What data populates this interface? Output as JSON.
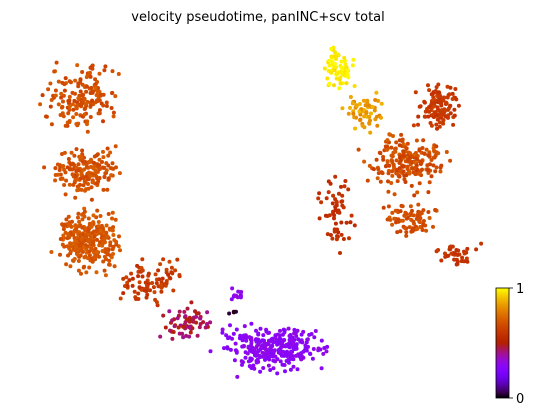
{
  "chart_data": {
    "type": "scatter",
    "title": "velocity pseudotime, panINC+scv total",
    "xlabel": "",
    "ylabel": "",
    "axes_visible": false,
    "grid": false,
    "colormap": "gnuplot",
    "color_value_range": [
      0,
      1
    ],
    "colorbar": {
      "position": "bottom-right",
      "ticks": [
        {
          "value": 0,
          "label": "0"
        },
        {
          "value": 1,
          "label": "1"
        }
      ]
    },
    "clusters": [
      {
        "name": "",
        "x_range": [
          35,
          130
        ],
        "y_range": [
          55,
          140
        ],
        "pseudotime_range": [
          0.62,
          0.72
        ],
        "n": 170
      },
      {
        "name": "",
        "x_range": [
          38,
          130
        ],
        "y_range": [
          140,
          205
        ],
        "pseudotime_range": [
          0.64,
          0.72
        ],
        "n": 170
      },
      {
        "name": "",
        "x_range": [
          45,
          130
        ],
        "y_range": [
          200,
          280
        ],
        "pseudotime_range": [
          0.66,
          0.73
        ],
        "n": 280
      },
      {
        "name": "",
        "x_range": [
          105,
          195
        ],
        "y_range": [
          255,
          310
        ],
        "pseudotime_range": [
          0.55,
          0.66
        ],
        "n": 90
      },
      {
        "name": "",
        "x_range": [
          155,
          220
        ],
        "y_range": [
          300,
          345
        ],
        "pseudotime_range": [
          0.4,
          0.52
        ],
        "n": 70
      },
      {
        "name": "",
        "x_range": [
          205,
          340
        ],
        "y_range": [
          318,
          380
        ],
        "pseudotime_range": [
          0.27,
          0.33
        ],
        "n": 300
      },
      {
        "name": "",
        "x_range": [
          228,
          246
        ],
        "y_range": [
          285,
          302
        ],
        "pseudotime_range": [
          0.28,
          0.33
        ],
        "n": 14
      },
      {
        "name": "",
        "x_range": [
          224,
          242
        ],
        "y_range": [
          308,
          318
        ],
        "pseudotime_range": [
          0.0,
          0.05
        ],
        "n": 4
      },
      {
        "name": "",
        "x_range": [
          318,
          358
        ],
        "y_range": [
          42,
          95
        ],
        "pseudotime_range": [
          0.95,
          1.0
        ],
        "n": 70
      },
      {
        "name": "",
        "x_range": [
          340,
          390
        ],
        "y_range": [
          85,
          140
        ],
        "pseudotime_range": [
          0.8,
          0.9
        ],
        "n": 60
      },
      {
        "name": "",
        "x_range": [
          410,
          465
        ],
        "y_range": [
          75,
          140
        ],
        "pseudotime_range": [
          0.57,
          0.64
        ],
        "n": 120
      },
      {
        "name": "",
        "x_range": [
          355,
          460
        ],
        "y_range": [
          125,
          200
        ],
        "pseudotime_range": [
          0.62,
          0.72
        ],
        "n": 200
      },
      {
        "name": "",
        "x_range": [
          375,
          445
        ],
        "y_range": [
          195,
          245
        ],
        "pseudotime_range": [
          0.63,
          0.72
        ],
        "n": 80
      },
      {
        "name": "",
        "x_range": [
          312,
          360
        ],
        "y_range": [
          160,
          265
        ],
        "pseudotime_range": [
          0.54,
          0.6
        ],
        "n": 60
      },
      {
        "name": "",
        "x_range": [
          425,
          485
        ],
        "y_range": [
          240,
          270
        ],
        "pseudotime_range": [
          0.56,
          0.62
        ],
        "n": 40
      }
    ]
  }
}
